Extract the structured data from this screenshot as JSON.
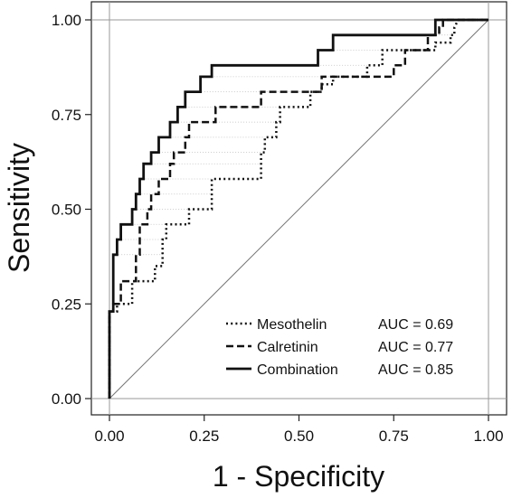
{
  "chart_data": {
    "type": "line",
    "xlabel": "1 - Specificity",
    "ylabel": "Sensitivity",
    "xlim": [
      0,
      1
    ],
    "ylim": [
      0,
      1
    ],
    "x_ticks": [
      "0.00",
      "0.25",
      "0.50",
      "0.75",
      "1.00"
    ],
    "y_ticks": [
      "0.00",
      "0.25",
      "0.50",
      "0.75",
      "1.00"
    ],
    "grid": false,
    "diagonal_reference": true,
    "legend_position": "bottom-right",
    "series": [
      {
        "name": "Mesothelin",
        "auc": "AUC = 0.69",
        "style": "dotted",
        "points": [
          [
            0,
            0
          ],
          [
            0,
            0.23
          ],
          [
            0.02,
            0.23
          ],
          [
            0.02,
            0.25
          ],
          [
            0.06,
            0.25
          ],
          [
            0.06,
            0.31
          ],
          [
            0.12,
            0.31
          ],
          [
            0.12,
            0.35
          ],
          [
            0.14,
            0.35
          ],
          [
            0.14,
            0.42
          ],
          [
            0.15,
            0.42
          ],
          [
            0.15,
            0.46
          ],
          [
            0.21,
            0.46
          ],
          [
            0.21,
            0.5
          ],
          [
            0.27,
            0.5
          ],
          [
            0.27,
            0.58
          ],
          [
            0.4,
            0.58
          ],
          [
            0.4,
            0.65
          ],
          [
            0.41,
            0.65
          ],
          [
            0.41,
            0.69
          ],
          [
            0.44,
            0.69
          ],
          [
            0.44,
            0.73
          ],
          [
            0.45,
            0.73
          ],
          [
            0.45,
            0.77
          ],
          [
            0.53,
            0.77
          ],
          [
            0.53,
            0.81
          ],
          [
            0.56,
            0.81
          ],
          [
            0.56,
            0.83
          ],
          [
            0.59,
            0.83
          ],
          [
            0.59,
            0.85
          ],
          [
            0.68,
            0.85
          ],
          [
            0.68,
            0.88
          ],
          [
            0.72,
            0.88
          ],
          [
            0.72,
            0.92
          ],
          [
            0.86,
            0.92
          ],
          [
            0.86,
            0.94
          ],
          [
            0.9,
            0.94
          ],
          [
            0.9,
            0.96
          ],
          [
            0.91,
            0.96
          ],
          [
            0.91,
            0.98
          ],
          [
            0.92,
            1.0
          ],
          [
            1,
            1
          ]
        ]
      },
      {
        "name": "Calretinin",
        "auc": "AUC = 0.77",
        "style": "dashed",
        "points": [
          [
            0,
            0
          ],
          [
            0,
            0.23
          ],
          [
            0.01,
            0.23
          ],
          [
            0.01,
            0.25
          ],
          [
            0.03,
            0.25
          ],
          [
            0.03,
            0.31
          ],
          [
            0.07,
            0.31
          ],
          [
            0.07,
            0.38
          ],
          [
            0.08,
            0.38
          ],
          [
            0.08,
            0.46
          ],
          [
            0.1,
            0.46
          ],
          [
            0.1,
            0.5
          ],
          [
            0.11,
            0.5
          ],
          [
            0.11,
            0.54
          ],
          [
            0.13,
            0.54
          ],
          [
            0.13,
            0.58
          ],
          [
            0.16,
            0.58
          ],
          [
            0.16,
            0.62
          ],
          [
            0.17,
            0.62
          ],
          [
            0.17,
            0.65
          ],
          [
            0.2,
            0.65
          ],
          [
            0.2,
            0.69
          ],
          [
            0.21,
            0.69
          ],
          [
            0.21,
            0.73
          ],
          [
            0.28,
            0.73
          ],
          [
            0.28,
            0.77
          ],
          [
            0.4,
            0.77
          ],
          [
            0.4,
            0.81
          ],
          [
            0.56,
            0.81
          ],
          [
            0.56,
            0.85
          ],
          [
            0.75,
            0.85
          ],
          [
            0.75,
            0.88
          ],
          [
            0.78,
            0.88
          ],
          [
            0.78,
            0.92
          ],
          [
            0.84,
            0.92
          ],
          [
            0.84,
            0.96
          ],
          [
            0.87,
            0.96
          ],
          [
            0.87,
            0.98
          ],
          [
            0.88,
            0.98
          ],
          [
            0.88,
            1.0
          ],
          [
            1,
            1
          ]
        ]
      },
      {
        "name": "Combination",
        "auc": "AUC = 0.85",
        "style": "solid",
        "points": [
          [
            0,
            0
          ],
          [
            0,
            0.23
          ],
          [
            0.01,
            0.23
          ],
          [
            0.01,
            0.38
          ],
          [
            0.02,
            0.38
          ],
          [
            0.02,
            0.42
          ],
          [
            0.03,
            0.42
          ],
          [
            0.03,
            0.46
          ],
          [
            0.06,
            0.46
          ],
          [
            0.06,
            0.5
          ],
          [
            0.07,
            0.5
          ],
          [
            0.07,
            0.54
          ],
          [
            0.08,
            0.54
          ],
          [
            0.08,
            0.58
          ],
          [
            0.09,
            0.58
          ],
          [
            0.09,
            0.62
          ],
          [
            0.11,
            0.62
          ],
          [
            0.11,
            0.65
          ],
          [
            0.13,
            0.65
          ],
          [
            0.13,
            0.69
          ],
          [
            0.16,
            0.69
          ],
          [
            0.16,
            0.73
          ],
          [
            0.18,
            0.73
          ],
          [
            0.18,
            0.77
          ],
          [
            0.2,
            0.77
          ],
          [
            0.2,
            0.81
          ],
          [
            0.24,
            0.81
          ],
          [
            0.24,
            0.85
          ],
          [
            0.27,
            0.85
          ],
          [
            0.27,
            0.88
          ],
          [
            0.32,
            0.88
          ],
          [
            0.32,
            0.88
          ],
          [
            0.55,
            0.88
          ],
          [
            0.55,
            0.92
          ],
          [
            0.59,
            0.92
          ],
          [
            0.59,
            0.96
          ],
          [
            0.86,
            0.96
          ],
          [
            0.86,
            1.0
          ],
          [
            1,
            1
          ]
        ]
      }
    ]
  }
}
